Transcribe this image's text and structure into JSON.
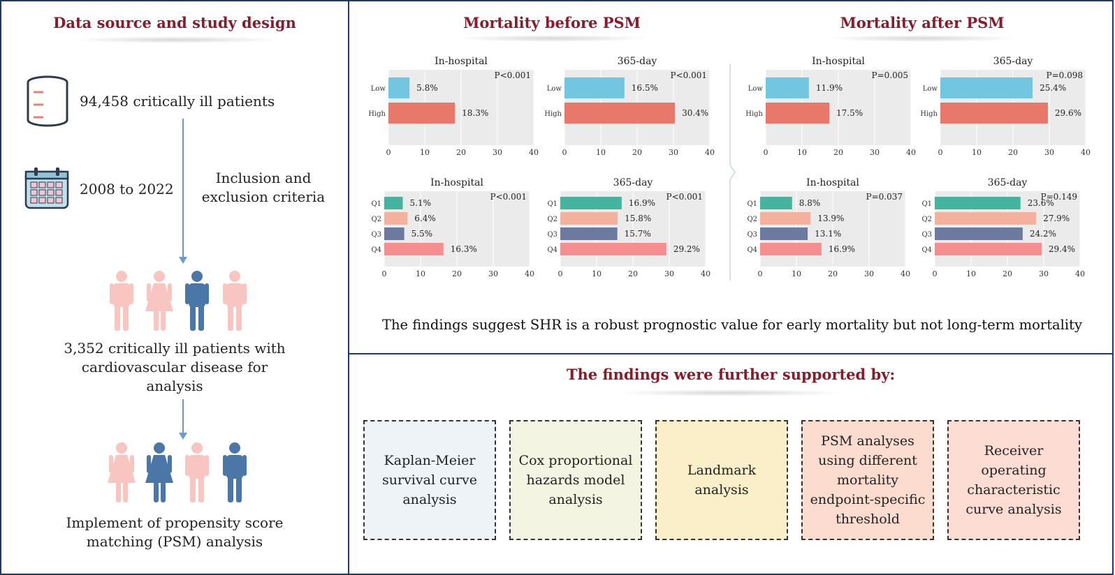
{
  "left": {
    "title": "Data source and study design",
    "patients_total": "94,458 critically ill patients",
    "years": "2008 to 2022",
    "criteria_line1": "Inclusion and",
    "criteria_line2": "exclusion criteria",
    "cohort_line1": "3,352 critically ill patients with",
    "cohort_line2": "cardiovascular disease for",
    "cohort_line3": "analysis",
    "psm_line1": "Implement of propensity score",
    "psm_line2": "matching (PSM) analysis"
  },
  "mortality": {
    "before_title": "Mortality before PSM",
    "after_title": "Mortality after PSM",
    "conclusion": "The findings suggest SHR is a robust prognostic value for early mortality but not long-term mortality"
  },
  "colors": {
    "low": "#72c7e0",
    "high": "#e8786a",
    "q1": "#45b39d",
    "q2": "#f4b19e",
    "q3": "#6c7a9f",
    "q4": "#f58e8e",
    "title_red": "#8b1a2b",
    "frame": "#1f3a63"
  },
  "chart_data": [
    {
      "type": "bar",
      "title": "In-hospital",
      "pvalue": "P<0.001",
      "categories": [
        "Low",
        "High"
      ],
      "values": [
        5.8,
        18.3
      ],
      "labels": [
        "5.8%",
        "18.3%"
      ],
      "xlim": [
        0,
        40
      ],
      "ticks": [
        "0",
        "10",
        "20",
        "30",
        "40"
      ]
    },
    {
      "type": "bar",
      "title": "365-day",
      "pvalue": "P<0.001",
      "categories": [
        "Low",
        "High"
      ],
      "values": [
        16.5,
        30.4
      ],
      "labels": [
        "16.5%",
        "30.4%"
      ],
      "xlim": [
        0,
        40
      ],
      "ticks": [
        "0",
        "10",
        "20",
        "30",
        "40"
      ]
    },
    {
      "type": "bar",
      "title": "In-hospital",
      "pvalue": "P=0.005",
      "categories": [
        "Low",
        "High"
      ],
      "values": [
        11.9,
        17.5
      ],
      "labels": [
        "11.9%",
        "17.5%"
      ],
      "xlim": [
        0,
        40
      ],
      "ticks": [
        "0",
        "10",
        "20",
        "30",
        "40"
      ]
    },
    {
      "type": "bar",
      "title": "365-day",
      "pvalue": "P=0.098",
      "categories": [
        "Low",
        "High"
      ],
      "values": [
        25.4,
        29.6
      ],
      "labels": [
        "25.4%",
        "29.6%"
      ],
      "xlim": [
        0,
        40
      ],
      "ticks": [
        "0",
        "10",
        "20",
        "30",
        "40"
      ]
    },
    {
      "type": "bar",
      "title": "In-hospital",
      "pvalue": "P<0.001",
      "categories": [
        "Q1",
        "Q2",
        "Q3",
        "Q4"
      ],
      "values": [
        5.1,
        6.4,
        5.5,
        16.3
      ],
      "labels": [
        "5.1%",
        "6.4%",
        "5.5%",
        "16.3%"
      ],
      "xlim": [
        0,
        40
      ],
      "ticks": [
        "0",
        "10",
        "20",
        "30",
        "40"
      ]
    },
    {
      "type": "bar",
      "title": "365-day",
      "pvalue": "P<0.001",
      "categories": [
        "Q1",
        "Q2",
        "Q3",
        "Q4"
      ],
      "values": [
        16.9,
        15.8,
        15.7,
        29.2
      ],
      "labels": [
        "16.9%",
        "15.8%",
        "15.7%",
        "29.2%"
      ],
      "xlim": [
        0,
        40
      ],
      "ticks": [
        "0",
        "10",
        "20",
        "30",
        "40"
      ]
    },
    {
      "type": "bar",
      "title": "In-hospital",
      "pvalue": "P=0.037",
      "categories": [
        "Q1",
        "Q2",
        "Q3",
        "Q4"
      ],
      "values": [
        8.8,
        13.9,
        13.1,
        16.9
      ],
      "labels": [
        "8.8%",
        "13.9%",
        "13.1%",
        "16.9%"
      ],
      "xlim": [
        0,
        40
      ],
      "ticks": [
        "0",
        "10",
        "20",
        "30",
        "40"
      ]
    },
    {
      "type": "bar",
      "title": "365-day",
      "pvalue": "P=0.149",
      "categories": [
        "Q1",
        "Q2",
        "Q3",
        "Q4"
      ],
      "values": [
        23.6,
        27.9,
        24.2,
        29.4
      ],
      "labels": [
        "23.6%",
        "27.9%",
        "24.2%",
        "29.4%"
      ],
      "xlim": [
        0,
        40
      ],
      "ticks": [
        "0",
        "10",
        "20",
        "30",
        "40"
      ]
    }
  ],
  "support": {
    "title": "The findings were further supported by:",
    "methods": [
      {
        "label": "Kaplan-Meier survival curve analysis",
        "bg": "#edf3f7"
      },
      {
        "label": "Cox proportional hazards model analysis",
        "bg": "#f4f4e2"
      },
      {
        "label": "Landmark analysis",
        "bg": "#fbefc9"
      },
      {
        "label": "PSM analyses using different mortality endpoint-specific threshold",
        "bg": "#fbdccf"
      },
      {
        "label": "Receiver operating characteristic curve analysis",
        "bg": "#fcdcd3"
      }
    ]
  }
}
